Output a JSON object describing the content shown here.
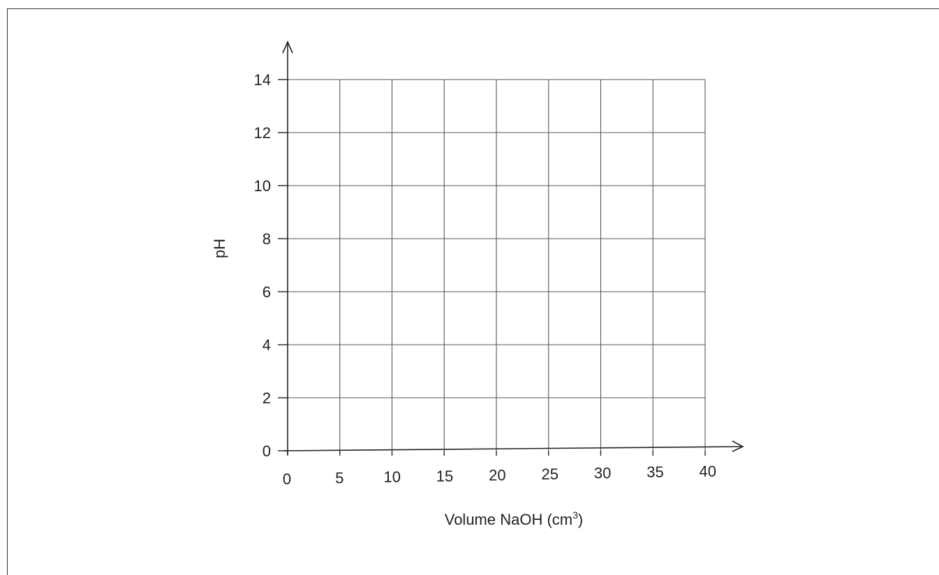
{
  "chart_data": {
    "type": "line",
    "title": "",
    "xlabel": "Volume NaOH (cm",
    "xlabel_superscript": "3",
    "xlabel_suffix": ")",
    "ylabel": "pH",
    "x_ticks": [
      "0",
      "5",
      "10",
      "15",
      "20",
      "25",
      "30",
      "35",
      "40"
    ],
    "y_ticks": [
      "0",
      "2",
      "4",
      "6",
      "8",
      "10",
      "12",
      "14"
    ],
    "xlim": [
      0,
      40
    ],
    "ylim": [
      0,
      14
    ],
    "x_step": 5,
    "y_step": 2,
    "grid": true,
    "series": [],
    "colors": {
      "axis": "#222222",
      "grid": "#555555"
    }
  }
}
